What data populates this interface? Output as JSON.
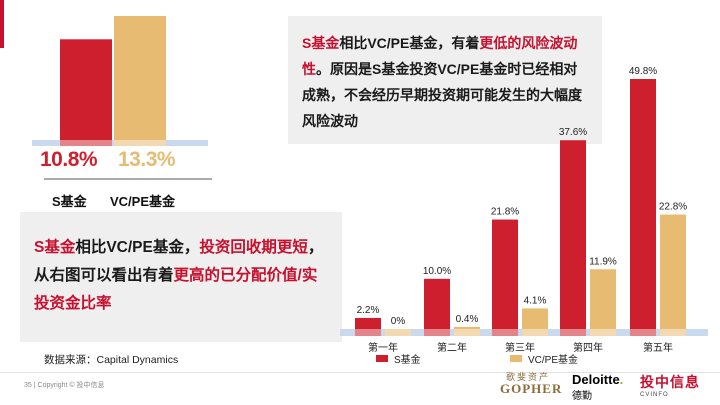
{
  "colors": {
    "s_fund": "#cd1f2d",
    "vcpe_fund": "#e8bb72",
    "highlight": "#c8102e",
    "baseline_band": "#c9d9ee"
  },
  "left_chart": {
    "chart_data": {
      "type": "bar",
      "categories": [
        "S基金",
        "VC/PE基金"
      ],
      "values": [
        10.8,
        13.3
      ],
      "value_labels": [
        "10.8%",
        "13.3%"
      ],
      "title": "",
      "xlabel": "",
      "ylabel": ""
    }
  },
  "callout_top": {
    "text_parts": [
      {
        "text": "S基金",
        "hl": true
      },
      {
        "text": "相比VC/PE基金，有着",
        "hl": false
      },
      {
        "text": "更低的风险波动性",
        "hl": true
      },
      {
        "text": "。原因是S基金投资VC/PE基金时已经相对成熟，不会经历早期投资期可能发生的大幅度风险波动",
        "hl": false
      }
    ]
  },
  "callout_left": {
    "text_parts": [
      {
        "text": "S基金",
        "hl": true
      },
      {
        "text": "相比VC/PE基金，",
        "hl": false
      },
      {
        "text": "投资回收期更短",
        "hl": true
      },
      {
        "text": "，从右图可以看出有着",
        "hl": false
      },
      {
        "text": "更高的已分配价值/实投资金比率",
        "hl": true
      }
    ]
  },
  "right_chart": {
    "chart_data": {
      "type": "bar",
      "categories": [
        "第一年",
        "第二年",
        "第三年",
        "第四年",
        "第五年"
      ],
      "series": [
        {
          "name": "S基金",
          "values": [
            2.2,
            10.0,
            21.8,
            37.6,
            49.8
          ],
          "labels": [
            "2.2%",
            "10.0%",
            "21.8%",
            "37.6%",
            "49.8%"
          ]
        },
        {
          "name": "VC/PE基金",
          "values": [
            0,
            0.4,
            4.1,
            11.9,
            22.8
          ],
          "labels": [
            "0%",
            "0.4%",
            "4.1%",
            "11.9%",
            "22.8%"
          ]
        }
      ],
      "legend": "bottom",
      "title": "",
      "xlabel": "",
      "ylabel": ""
    }
  },
  "source": "数据来源：Capital Dynamics",
  "footer": {
    "page": "35",
    "copyright": "Copyright © 投中信息"
  },
  "logos": {
    "gopher_cn": "歌斐资产",
    "gopher_en": "GOPHER",
    "deloitte_en": "Deloitte",
    "deloitte_dot": ".",
    "deloitte_cn": "德勤",
    "cvinfo_cn": "投中信息",
    "cvinfo_en": "CVINFO"
  }
}
